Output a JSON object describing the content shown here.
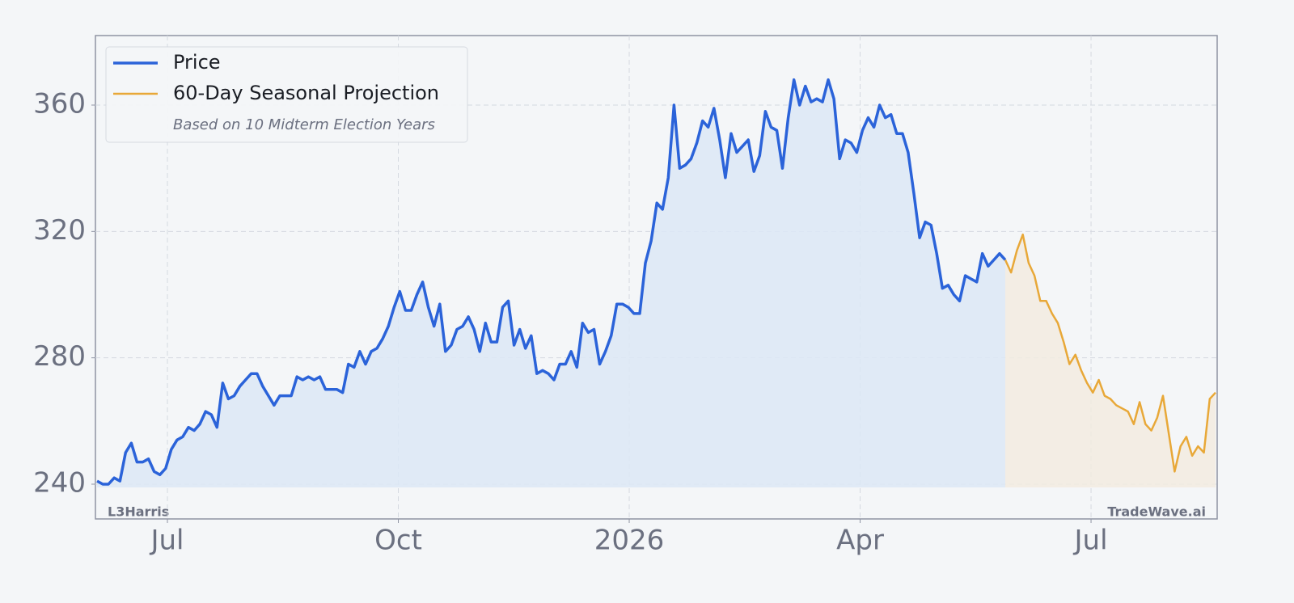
{
  "chart_data": {
    "type": "line",
    "series": [
      {
        "name": "Price",
        "color": "#2b63d9",
        "values": [
          241,
          240,
          240,
          242,
          241,
          250,
          253,
          247,
          247,
          248,
          244,
          243,
          245,
          251,
          254,
          255,
          258,
          257,
          259,
          263,
          262,
          258,
          272,
          267,
          268,
          271,
          273,
          275,
          275,
          271,
          268,
          265,
          268,
          268,
          268,
          274,
          273,
          274,
          273,
          274,
          270,
          270,
          270,
          269,
          278,
          277,
          282,
          278,
          282,
          283,
          286,
          290,
          296,
          301,
          295,
          295,
          300,
          304,
          296,
          290,
          297,
          282,
          284,
          289,
          290,
          293,
          289,
          282,
          291,
          285,
          285,
          296,
          298,
          284,
          289,
          283,
          287,
          275,
          276,
          275,
          273,
          278,
          278,
          282,
          277,
          291,
          288,
          289,
          278,
          282,
          287,
          297,
          297,
          296,
          294,
          294,
          310,
          317,
          329,
          327,
          337,
          360,
          340,
          341,
          343,
          348,
          355,
          353,
          359,
          349,
          337,
          351,
          345,
          347,
          349,
          339,
          344,
          358,
          353,
          352,
          340,
          356,
          368,
          360,
          366,
          361,
          362,
          361,
          368,
          362,
          343,
          349,
          348,
          345,
          352,
          356,
          353,
          360,
          356,
          357,
          351,
          351,
          345,
          332,
          318,
          323,
          322,
          313,
          302,
          303,
          300,
          298,
          306,
          305,
          304,
          313,
          309,
          311,
          313,
          311
        ]
      },
      {
        "name": "60-Day Seasonal Projection",
        "color": "#e8a838",
        "values": [
          311,
          307,
          314,
          319,
          310,
          306,
          298,
          298,
          294,
          291,
          285,
          278,
          281,
          276,
          272,
          269,
          273,
          268,
          267,
          265,
          264,
          263,
          259,
          266,
          259,
          257,
          261,
          268,
          256,
          244,
          252,
          255,
          249,
          252,
          250,
          267,
          269
        ]
      }
    ],
    "legend_note": "Based on 10 Midterm Election Years",
    "ylim": [
      229,
      382
    ],
    "yticks": [
      240,
      280,
      320,
      360
    ],
    "xticks": [
      {
        "value": "2025-07",
        "label": "Jul"
      },
      {
        "value": "2025-10",
        "label": "Oct"
      },
      {
        "value": "2026-01",
        "label": "2026"
      },
      {
        "value": "2026-04",
        "label": "Apr"
      },
      {
        "value": "2026-07",
        "label": "Jul"
      }
    ],
    "grid": true,
    "legend": "upper left",
    "watermark_left": "L3Harris",
    "watermark_right": "TradeWave.ai"
  }
}
